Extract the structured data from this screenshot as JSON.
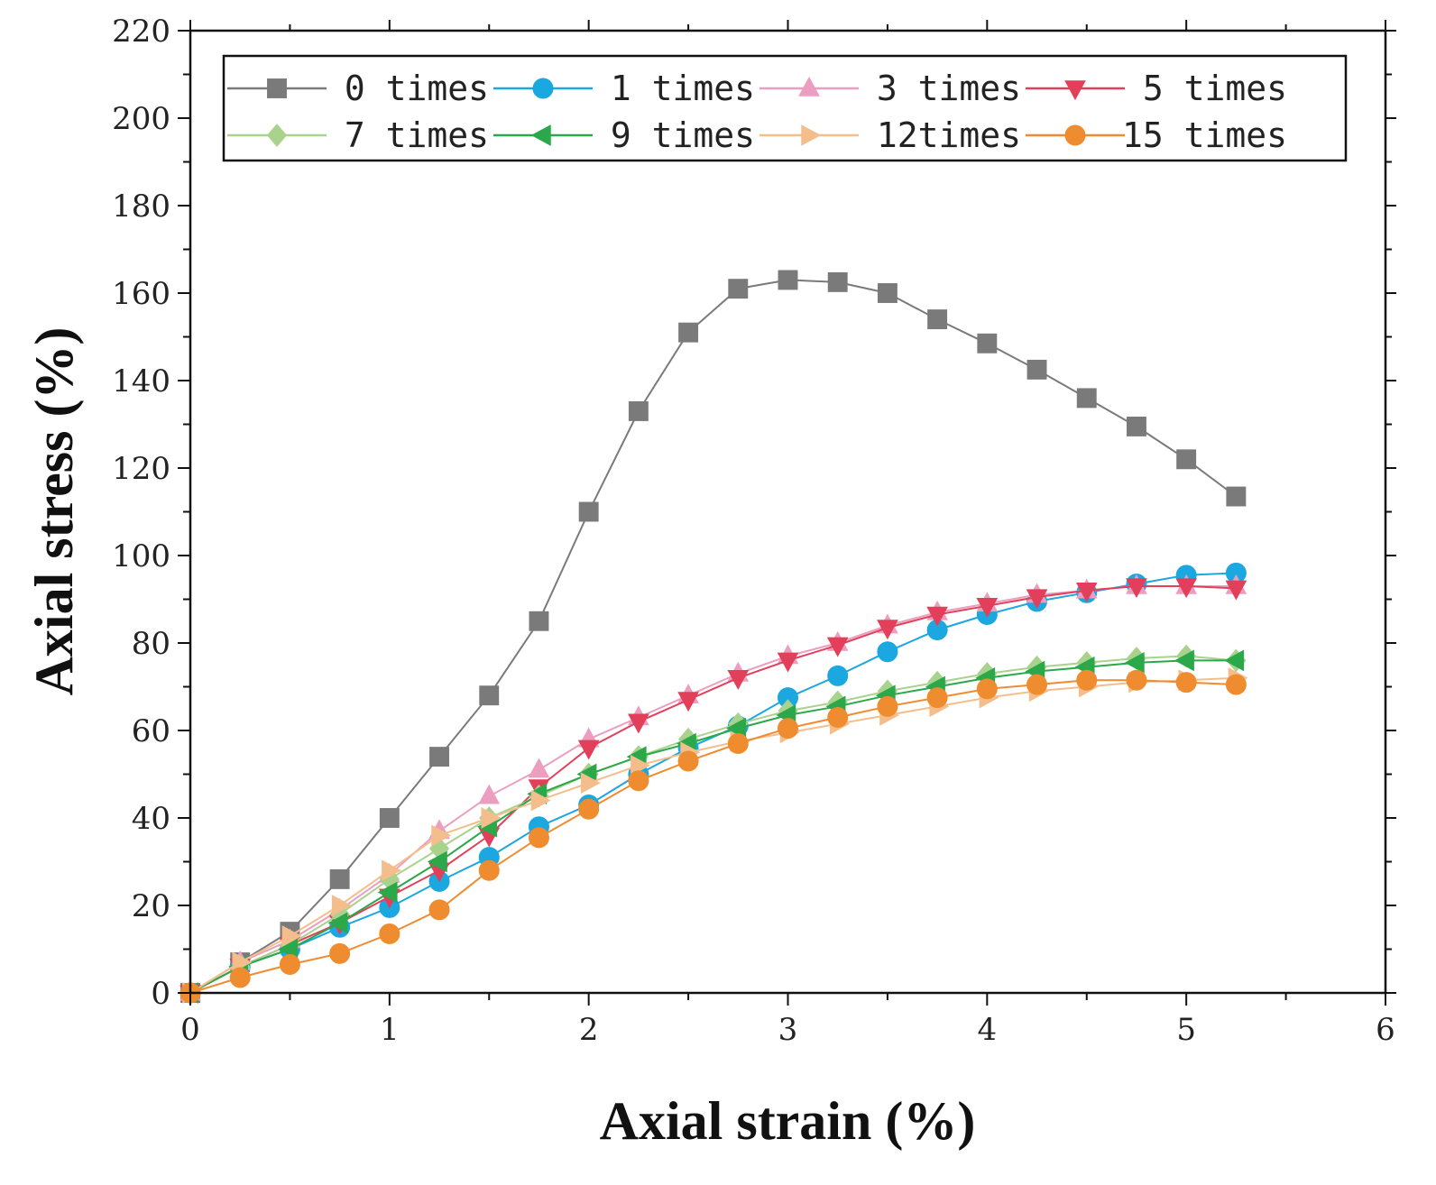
{
  "chart_data": {
    "type": "line",
    "title": "",
    "xlabel": "Axial strain (%)",
    "ylabel": "Axial stress (%)",
    "xlim": [
      0,
      6
    ],
    "ylim": [
      0,
      220
    ],
    "xticks": [
      0,
      1,
      2,
      3,
      4,
      5,
      6
    ],
    "yticks": [
      0,
      20,
      40,
      60,
      80,
      100,
      120,
      140,
      160,
      180,
      200,
      220
    ],
    "grid": false,
    "legend_position": "top",
    "x": [
      0,
      0.25,
      0.5,
      0.75,
      1,
      1.25,
      1.5,
      1.75,
      2,
      2.25,
      2.5,
      2.75,
      3,
      3.25,
      3.5,
      3.75,
      4,
      4.25,
      4.5,
      4.75,
      5,
      5.25
    ],
    "series": [
      {
        "name": "0 times",
        "color": "#7a7a7a",
        "marker": "square",
        "values": [
          0,
          7,
          14,
          26,
          40,
          54,
          68,
          85,
          110,
          133,
          151,
          161,
          163,
          162.5,
          160,
          154,
          148.5,
          142.5,
          136,
          129.5,
          122,
          113.5
        ]
      },
      {
        "name": "1 times",
        "color": "#1ba7e0",
        "marker": "circle",
        "values": [
          0,
          6,
          10,
          15,
          19.5,
          25.5,
          31,
          38,
          43,
          50,
          56,
          61,
          67.5,
          72.5,
          78,
          83,
          86.5,
          89.5,
          91.5,
          93.5,
          95.5,
          96
        ]
      },
      {
        "name": "3 times",
        "color": "#ec9ec0",
        "marker": "triangle-up",
        "values": [
          0,
          7,
          12,
          19,
          27,
          37,
          45,
          51,
          58,
          63,
          68,
          73,
          77,
          80,
          84,
          87,
          89,
          91,
          92,
          93,
          93,
          93
        ]
      },
      {
        "name": "5 times",
        "color": "#e2405a",
        "marker": "triangle-down",
        "values": [
          0,
          6,
          11,
          16,
          22,
          28,
          36,
          47,
          56,
          62,
          67,
          72,
          76,
          79.5,
          83.5,
          86.5,
          88.5,
          90.5,
          92,
          93,
          93,
          92.5
        ]
      },
      {
        "name": "7 times",
        "color": "#a9d28c",
        "marker": "diamond",
        "values": [
          0,
          6,
          11,
          18,
          26,
          33,
          40,
          45,
          50,
          54,
          58,
          61.5,
          64.5,
          66.5,
          69,
          71,
          73,
          74.5,
          75.5,
          76.5,
          77,
          76
        ]
      },
      {
        "name": "9 times",
        "color": "#2aa84a",
        "marker": "triangle-left",
        "values": [
          0,
          6,
          10,
          16,
          23,
          30,
          38,
          45.5,
          50,
          54,
          57,
          60.5,
          63.5,
          65.5,
          68,
          70,
          72,
          73.5,
          74.5,
          75.5,
          76,
          76
        ]
      },
      {
        "name": "12times",
        "color": "#f4be8c",
        "marker": "triangle-right",
        "values": [
          0,
          7,
          13,
          20,
          28,
          36,
          40,
          44,
          48,
          52,
          55,
          57.5,
          59.5,
          61.5,
          63.5,
          65.5,
          67.5,
          69,
          70,
          71,
          71.5,
          72
        ]
      },
      {
        "name": "15 times",
        "color": "#f08c30",
        "marker": "circle",
        "values": [
          0,
          3.5,
          6.5,
          9,
          13.5,
          19,
          28,
          35.5,
          42,
          48.5,
          53,
          57,
          60.5,
          63,
          65.5,
          67.5,
          69.5,
          70.5,
          71.5,
          71.5,
          71,
          70.5
        ]
      }
    ]
  }
}
